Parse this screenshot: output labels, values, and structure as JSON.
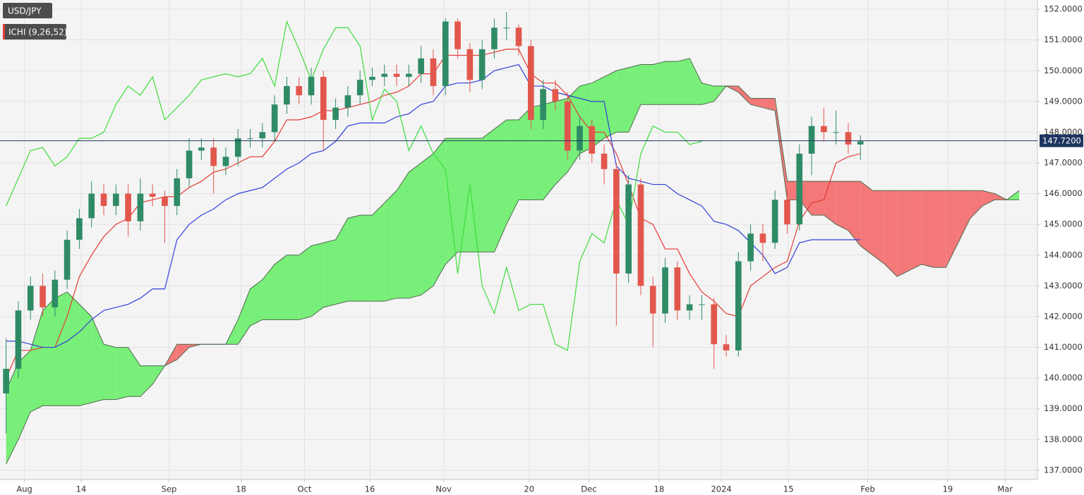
{
  "chart_data": {
    "type": "candlestick",
    "title": "USD/JPY",
    "indicator": "ICHI (9,26,52)",
    "xlim": [
      -1,
      169
    ],
    "ylim": [
      136.7,
      152.3
    ],
    "grid": true,
    "up_color": "#2f8b66",
    "down_color": "#e2574c",
    "xticks": [
      {
        "value": 3.0,
        "label": "Aug"
      },
      {
        "value": 12.3,
        "label": "14"
      },
      {
        "value": 26.7,
        "label": "Sep"
      },
      {
        "value": 38.5,
        "label": "18"
      },
      {
        "value": 48.9,
        "label": "Oct"
      },
      {
        "value": 59.6,
        "label": "16"
      },
      {
        "value": 71.7,
        "label": "Nov"
      },
      {
        "value": 85.7,
        "label": "20"
      },
      {
        "value": 95.5,
        "label": "Dec"
      },
      {
        "value": 107.0,
        "label": "18"
      },
      {
        "value": 117.2,
        "label": "2024"
      },
      {
        "value": 128.2,
        "label": "15"
      },
      {
        "value": 141.2,
        "label": "Feb"
      },
      {
        "value": 154.3,
        "label": "19"
      },
      {
        "value": 163.7,
        "label": "Mar"
      }
    ],
    "yticks": [
      {
        "value": 137,
        "label": "137.0000"
      },
      {
        "value": 138,
        "label": "138.0000"
      },
      {
        "value": 139,
        "label": "139.0000"
      },
      {
        "value": 140,
        "label": "140.0000"
      },
      {
        "value": 141,
        "label": "141.0000"
      },
      {
        "value": 142,
        "label": "142.0000"
      },
      {
        "value": 143,
        "label": "143.0000"
      },
      {
        "value": 144,
        "label": "144.0000"
      },
      {
        "value": 145,
        "label": "145.0000"
      },
      {
        "value": 146,
        "label": "146.0000"
      },
      {
        "value": 147,
        "label": "147.0000"
      },
      {
        "value": 148,
        "label": "148.0000"
      },
      {
        "value": 149,
        "label": "149.0000"
      },
      {
        "value": 150,
        "label": "150.0000"
      },
      {
        "value": 151,
        "label": "151.0000"
      },
      {
        "value": 152,
        "label": "152.0000"
      }
    ],
    "last_price": {
      "value": 147.72,
      "label": "147.7200",
      "color": "#1f3560"
    },
    "x": [
      0,
      2,
      4,
      6,
      8,
      10,
      12,
      14,
      16,
      18,
      20,
      22,
      24,
      26,
      28,
      30,
      32,
      34,
      36,
      38,
      40,
      42,
      44,
      46,
      48,
      50,
      52,
      54,
      56,
      58,
      60,
      62,
      64,
      66,
      68,
      70,
      72,
      74,
      76,
      78,
      80,
      82,
      84,
      86,
      88,
      90,
      92,
      94,
      96,
      98,
      100,
      102,
      104,
      106,
      108,
      110,
      112,
      114,
      116,
      118,
      120,
      122,
      124,
      126,
      128,
      130,
      132,
      134,
      136,
      138,
      140
    ],
    "open": [
      139.5,
      140.3,
      142.2,
      143.0,
      142.3,
      143.2,
      144.5,
      145.2,
      146.0,
      145.6,
      146.0,
      145.1,
      146.0,
      145.9,
      145.6,
      146.5,
      147.4,
      147.5,
      146.9,
      147.2,
      147.8,
      147.8,
      148.0,
      148.9,
      149.5,
      149.2,
      149.8,
      148.4,
      148.8,
      149.2,
      149.7,
      149.8,
      149.9,
      149.8,
      149.9,
      150.4,
      149.5,
      151.6,
      150.7,
      149.7,
      150.7,
      151.4,
      151.4,
      150.8,
      148.4,
      149.4,
      149.0,
      147.4,
      148.2,
      147.3,
      146.8,
      143.4,
      146.3,
      143.0,
      142.1,
      143.6,
      142.2,
      142.4,
      142.4,
      141.1,
      140.9,
      143.8,
      144.7,
      144.4,
      145.8,
      145.0,
      147.3,
      148.2,
      148.0,
      148.0,
      147.6
    ],
    "high": [
      141.3,
      142.5,
      143.3,
      143.4,
      143.5,
      144.8,
      145.5,
      146.4,
      146.3,
      146.3,
      146.3,
      146.5,
      146.3,
      146.1,
      146.8,
      147.8,
      147.8,
      147.8,
      147.5,
      148.1,
      148.1,
      148.3,
      149.2,
      149.8,
      149.8,
      150.1,
      150.0,
      149.1,
      149.5,
      150.0,
      150.1,
      150.2,
      150.2,
      150.2,
      150.8,
      150.7,
      151.7,
      151.7,
      150.9,
      151.0,
      151.7,
      151.9,
      151.5,
      151.0,
      149.7,
      149.7,
      149.3,
      148.5,
      148.4,
      147.6,
      147.0,
      146.6,
      146.5,
      143.3,
      143.9,
      143.8,
      142.7,
      142.7,
      142.6,
      141.4,
      144.1,
      145.0,
      145.0,
      146.1,
      146.2,
      147.6,
      148.5,
      148.8,
      148.7,
      148.3,
      147.9
    ],
    "low": [
      138.2,
      140.0,
      141.9,
      142.0,
      142.0,
      142.9,
      144.2,
      144.9,
      145.3,
      145.3,
      144.6,
      144.8,
      145.6,
      144.4,
      145.3,
      146.2,
      147.1,
      146.0,
      146.6,
      146.9,
      147.5,
      147.5,
      147.7,
      148.6,
      148.9,
      148.9,
      147.4,
      148.1,
      148.5,
      148.9,
      149.5,
      149.5,
      149.5,
      149.5,
      149.6,
      149.2,
      149.2,
      150.4,
      149.3,
      149.4,
      150.4,
      151.0,
      150.5,
      148.1,
      148.1,
      148.7,
      147.1,
      147.1,
      147.0,
      146.3,
      141.7,
      143.1,
      142.7,
      141.0,
      141.8,
      141.9,
      141.9,
      141.9,
      140.3,
      140.7,
      140.7,
      143.5,
      143.8,
      144.2,
      144.7,
      144.8,
      146.6,
      147.7,
      147.6,
      147.3,
      147.1
    ],
    "close": [
      140.3,
      142.2,
      143.0,
      142.3,
      143.2,
      144.5,
      145.2,
      146.0,
      145.6,
      146.0,
      145.1,
      146.0,
      145.9,
      145.6,
      146.5,
      147.4,
      147.5,
      146.9,
      147.2,
      147.8,
      147.8,
      148.0,
      148.9,
      149.5,
      149.2,
      149.8,
      148.4,
      148.8,
      149.2,
      149.7,
      149.8,
      149.9,
      149.8,
      149.9,
      150.4,
      149.5,
      151.6,
      150.7,
      149.7,
      150.7,
      151.4,
      151.4,
      150.8,
      148.4,
      149.4,
      149.0,
      147.4,
      148.2,
      147.3,
      146.8,
      143.4,
      146.3,
      143.0,
      142.1,
      143.6,
      142.2,
      142.4,
      142.4,
      141.1,
      140.9,
      143.8,
      144.7,
      144.4,
      145.8,
      145.0,
      147.3,
      148.2,
      148.0,
      148.0,
      147.6,
      147.7
    ],
    "cloud": {
      "up_color": "#78ef78",
      "down_color": "#f47878",
      "line_color": "#4f6a4f",
      "x": [
        0,
        2,
        4,
        6,
        8,
        10,
        12,
        14,
        16,
        18,
        20,
        22,
        24,
        26,
        28,
        30,
        32,
        34,
        36,
        38,
        40,
        42,
        44,
        46,
        48,
        50,
        52,
        54,
        56,
        58,
        60,
        62,
        64,
        66,
        68,
        70,
        72,
        74,
        76,
        78,
        80,
        82,
        84,
        86,
        88,
        90,
        92,
        94,
        96,
        98,
        100,
        102,
        104,
        106,
        108,
        110,
        112,
        114,
        116,
        118,
        120,
        122,
        124,
        126,
        128,
        130,
        132,
        134,
        136,
        138,
        140,
        142,
        144,
        146,
        148,
        150,
        152,
        154,
        156,
        158,
        160,
        162,
        164,
        166
      ],
      "span_a": [
        139.6,
        140.5,
        140.9,
        142.2,
        142.6,
        142.8,
        142.4,
        142.0,
        141.1,
        141.0,
        141.0,
        140.4,
        140.4,
        140.4,
        140.6,
        141.0,
        141.1,
        141.1,
        141.1,
        141.9,
        142.9,
        143.2,
        143.7,
        144.0,
        144.0,
        144.3,
        144.4,
        144.5,
        145.2,
        145.3,
        145.3,
        145.7,
        146.1,
        146.7,
        147.0,
        147.3,
        147.8,
        147.8,
        147.8,
        147.8,
        148.1,
        148.4,
        148.4,
        148.8,
        148.9,
        149.0,
        149.1,
        149.5,
        149.6,
        149.8,
        150.0,
        150.1,
        150.2,
        150.2,
        150.3,
        150.3,
        150.4,
        149.6,
        149.5,
        149.5,
        149.3,
        148.9,
        148.8,
        148.7,
        145.8,
        145.8,
        145.3,
        145.3,
        145.0,
        144.8,
        144.3,
        144.0,
        143.7,
        143.3,
        143.5,
        143.7,
        143.6,
        143.6,
        144.4,
        145.2,
        145.6,
        145.8,
        145.8,
        146.1
      ],
      "span_b": [
        137.2,
        138.0,
        138.9,
        139.1,
        139.1,
        139.1,
        139.1,
        139.2,
        139.3,
        139.3,
        139.4,
        139.4,
        139.8,
        140.4,
        141.1,
        141.1,
        141.1,
        141.1,
        141.1,
        141.1,
        141.7,
        141.9,
        141.9,
        141.9,
        141.9,
        142.0,
        142.3,
        142.4,
        142.5,
        142.5,
        142.5,
        142.5,
        142.6,
        142.6,
        142.7,
        143.0,
        143.7,
        144.1,
        144.1,
        144.1,
        144.1,
        145.0,
        145.8,
        145.8,
        145.8,
        146.3,
        146.7,
        147.3,
        147.5,
        147.8,
        148.0,
        148.0,
        148.9,
        148.9,
        148.9,
        148.9,
        148.9,
        148.9,
        149.0,
        149.5,
        149.5,
        149.1,
        149.1,
        149.1,
        146.4,
        146.4,
        146.4,
        146.4,
        146.4,
        146.4,
        146.4,
        146.1,
        146.1,
        146.1,
        146.1,
        146.1,
        146.1,
        146.1,
        146.1,
        146.1,
        146.1,
        146.0,
        145.8,
        145.8
      ]
    },
    "overlays": [
      {
        "color": "#e53935",
        "values": [
          140.0,
          140.9,
          140.9,
          141.0,
          141.0,
          142.0,
          143.3,
          144.0,
          144.6,
          145.0,
          145.2,
          145.7,
          145.8,
          145.9,
          145.9,
          146.2,
          146.4,
          146.7,
          146.8,
          147.0,
          147.2,
          147.2,
          147.7,
          148.4,
          148.4,
          148.5,
          148.7,
          148.7,
          148.8,
          148.9,
          149.0,
          149.2,
          149.3,
          149.5,
          149.9,
          149.9,
          150.5,
          150.5,
          150.5,
          150.5,
          150.6,
          150.7,
          150.7,
          149.9,
          149.6,
          149.6,
          149.2,
          148.5,
          148.0,
          148.0,
          147.3,
          146.3,
          145.2,
          145.0,
          144.2,
          144.2,
          143.4,
          142.8,
          142.5,
          142.1,
          142.0,
          143.0,
          143.3,
          143.6,
          143.8,
          145.1,
          145.7,
          145.8,
          147.0,
          147.2,
          147.3
        ]
      },
      {
        "color": "#2f3fd8",
        "values": [
          141.2,
          141.2,
          141.1,
          141.0,
          141.0,
          141.2,
          141.5,
          141.9,
          142.2,
          142.3,
          142.4,
          142.6,
          142.9,
          142.9,
          144.5,
          145.0,
          145.3,
          145.5,
          145.8,
          146.0,
          146.1,
          146.2,
          146.5,
          146.8,
          147.0,
          147.3,
          147.4,
          147.7,
          148.2,
          148.3,
          148.3,
          148.3,
          148.5,
          148.6,
          148.9,
          149.0,
          149.5,
          149.6,
          149.6,
          149.7,
          150.0,
          150.1,
          150.2,
          149.5,
          149.5,
          149.3,
          149.2,
          149.1,
          149.0,
          149.0,
          146.9,
          146.5,
          146.4,
          146.3,
          146.3,
          146.0,
          145.8,
          145.6,
          145.1,
          145.0,
          144.8,
          144.4,
          144.0,
          143.4,
          143.6,
          144.4,
          144.5,
          144.5,
          144.5,
          144.5,
          144.5
        ]
      },
      {
        "color": "#3ddc3d",
        "x": [
          0,
          2,
          4,
          6,
          8,
          10,
          12,
          14,
          16,
          18,
          20,
          22,
          24,
          26,
          28,
          30,
          32,
          34,
          36,
          38,
          40,
          42,
          44,
          46,
          48,
          50,
          52,
          54,
          56,
          58,
          60,
          62,
          64,
          66,
          68,
          70,
          72,
          74,
          76,
          78,
          80,
          82,
          84,
          86,
          88,
          90,
          92,
          94,
          96,
          98,
          100,
          102,
          104,
          106,
          108,
          110,
          112,
          114
        ],
        "values": [
          145.6,
          146.5,
          147.4,
          147.5,
          146.9,
          147.2,
          147.8,
          147.8,
          148.0,
          148.9,
          149.5,
          149.2,
          149.8,
          148.4,
          148.8,
          149.2,
          149.7,
          149.8,
          149.9,
          149.8,
          149.9,
          150.4,
          149.5,
          151.6,
          150.7,
          149.7,
          150.7,
          151.4,
          151.4,
          150.8,
          148.4,
          149.4,
          149.0,
          147.4,
          148.2,
          147.3,
          146.8,
          143.4,
          146.3,
          143.0,
          142.1,
          143.6,
          142.2,
          142.4,
          142.4,
          141.1,
          140.9,
          143.8,
          144.7,
          144.4,
          145.8,
          145.0,
          147.3,
          148.2,
          148.0,
          148.0,
          147.6,
          147.7
        ]
      }
    ]
  }
}
